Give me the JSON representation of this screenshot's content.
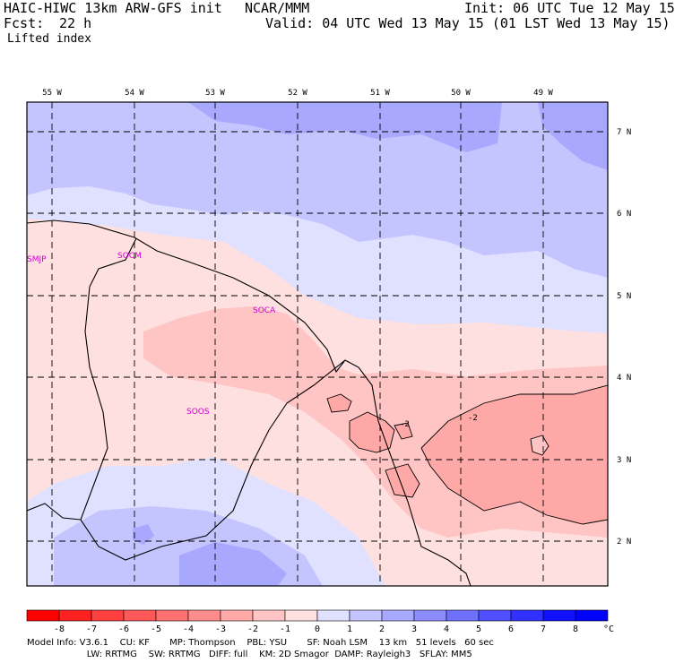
{
  "header": {
    "model_line": "HAIC-HIWC 13km ARW-GFS init",
    "org": "NCAR/MMM",
    "init": "Init: 06 UTC Tue 12 May 15",
    "fcst_label": "Fcst:",
    "fcst_value": "22 h",
    "valid": "Valid: 04 UTC Wed 13 May 15 (01 LST Wed 13 May 15)",
    "field": "Lifted index"
  },
  "map": {
    "lon_labels": [
      "55 W",
      "54 W",
      "53 W",
      "52 W",
      "51 W",
      "50 W",
      "49 W"
    ],
    "lat_labels": [
      "7 N",
      "6 N",
      "5 N",
      "4 N",
      "3 N",
      "2 N"
    ],
    "stations": [
      "SMJP",
      "SOCM",
      "SOCA",
      "SOOS"
    ],
    "contour_labels": [
      "-2",
      "-2"
    ]
  },
  "colorbar": {
    "ticks": [
      "-8",
      "-7",
      "-6",
      "-5",
      "-4",
      "-3",
      "-2",
      "-1",
      "0",
      "1",
      "2",
      "3",
      "4",
      "5",
      "6",
      "7",
      "8"
    ],
    "unit": "°C",
    "colors": [
      "#ff0000",
      "#ff2020",
      "#ff4040",
      "#ff5858",
      "#ff7070",
      "#ff8c8c",
      "#ffa8a8",
      "#ffc4c4",
      "#ffe0e0",
      "#e0e0ff",
      "#c4c4ff",
      "#a8a8ff",
      "#8c8cff",
      "#7070ff",
      "#5050ff",
      "#3030ff",
      "#1010ff",
      "#0000ff"
    ]
  },
  "footer": {
    "line1": "Model Info: V3.6.1    CU: KF       MP: Thompson    PBL: YSU       SF: Noah LSM    13 km   51 levels   60 sec",
    "line2": "                     LW: RRTMG    SW: RRTMG   DIFF: full    KM: 2D Smagor  DAMP: Rayleigh3   SFLAY: MM5"
  }
}
